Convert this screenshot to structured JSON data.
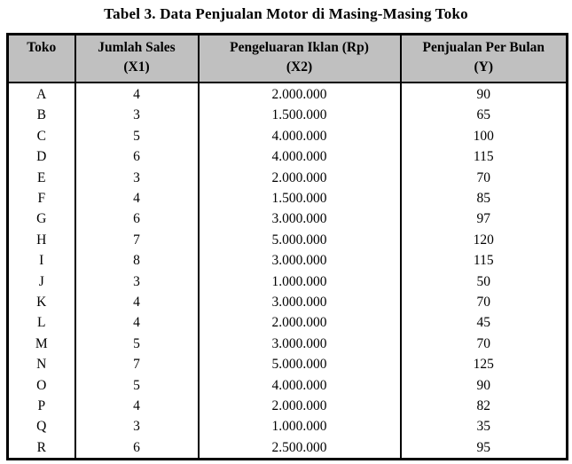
{
  "title": "Tabel 3. Data Penjualan Motor di Masing-Masing Toko",
  "colors": {
    "header_bg": "#c0c0c0",
    "border": "#000000",
    "text": "#000000",
    "page_bg": "#ffffff"
  },
  "table": {
    "columns": [
      {
        "line1": "Toko",
        "line2": ""
      },
      {
        "line1": "Jumlah Sales",
        "line2": "(X1)"
      },
      {
        "line1": "Pengeluaran Iklan (Rp)",
        "line2": "(X2)"
      },
      {
        "line1": "Penjualan Per Bulan",
        "line2": "(Y)"
      }
    ],
    "rows": [
      {
        "toko": "A",
        "jumlah_sales": "4",
        "pengeluaran_iklan": "2.000.000",
        "penjualan_per_bulan": "90"
      },
      {
        "toko": "B",
        "jumlah_sales": "3",
        "pengeluaran_iklan": "1.500.000",
        "penjualan_per_bulan": "65"
      },
      {
        "toko": "C",
        "jumlah_sales": "5",
        "pengeluaran_iklan": "4.000.000",
        "penjualan_per_bulan": "100"
      },
      {
        "toko": "D",
        "jumlah_sales": "6",
        "pengeluaran_iklan": "4.000.000",
        "penjualan_per_bulan": "115"
      },
      {
        "toko": "E",
        "jumlah_sales": "3",
        "pengeluaran_iklan": "2.000.000",
        "penjualan_per_bulan": "70"
      },
      {
        "toko": "F",
        "jumlah_sales": "4",
        "pengeluaran_iklan": "1.500.000",
        "penjualan_per_bulan": "85"
      },
      {
        "toko": "G",
        "jumlah_sales": "6",
        "pengeluaran_iklan": "3.000.000",
        "penjualan_per_bulan": "97"
      },
      {
        "toko": "H",
        "jumlah_sales": "7",
        "pengeluaran_iklan": "5.000.000",
        "penjualan_per_bulan": "120"
      },
      {
        "toko": "I",
        "jumlah_sales": "8",
        "pengeluaran_iklan": "3.000.000",
        "penjualan_per_bulan": "115"
      },
      {
        "toko": "J",
        "jumlah_sales": "3",
        "pengeluaran_iklan": "1.000.000",
        "penjualan_per_bulan": "50"
      },
      {
        "toko": "K",
        "jumlah_sales": "4",
        "pengeluaran_iklan": "3.000.000",
        "penjualan_per_bulan": "70"
      },
      {
        "toko": "L",
        "jumlah_sales": "4",
        "pengeluaran_iklan": "2.000.000",
        "penjualan_per_bulan": "45"
      },
      {
        "toko": "M",
        "jumlah_sales": "5",
        "pengeluaran_iklan": "3.000.000",
        "penjualan_per_bulan": "70"
      },
      {
        "toko": "N",
        "jumlah_sales": "7",
        "pengeluaran_iklan": "5.000.000",
        "penjualan_per_bulan": "125"
      },
      {
        "toko": "O",
        "jumlah_sales": "5",
        "pengeluaran_iklan": "4.000.000",
        "penjualan_per_bulan": "90"
      },
      {
        "toko": "P",
        "jumlah_sales": "4",
        "pengeluaran_iklan": "2.000.000",
        "penjualan_per_bulan": "82"
      },
      {
        "toko": "Q",
        "jumlah_sales": "3",
        "pengeluaran_iklan": "1.000.000",
        "penjualan_per_bulan": "35"
      },
      {
        "toko": "R",
        "jumlah_sales": "6",
        "pengeluaran_iklan": "2.500.000",
        "penjualan_per_bulan": "95"
      }
    ]
  }
}
